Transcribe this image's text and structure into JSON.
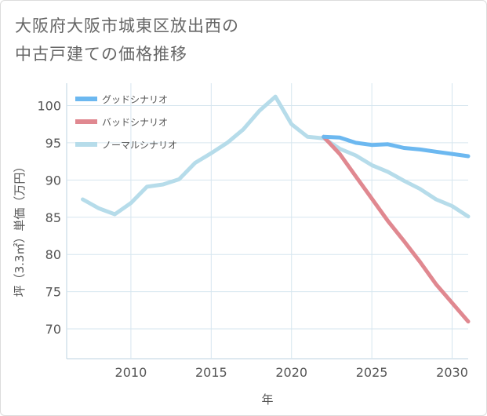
{
  "title_lines": [
    "大阪府大阪市城東区放出西の",
    "中古戸建ての価格推移"
  ],
  "chart_data": {
    "type": "line",
    "title": "大阪府大阪市城東区放出西の中古戸建ての価格推移",
    "xlabel": "年",
    "ylabel": "坪（3.3㎡）単価（万円）",
    "xlim": [
      2006,
      2031
    ],
    "ylim": [
      66,
      103
    ],
    "xticks": [
      2010,
      2015,
      2020,
      2025,
      2030
    ],
    "yticks": [
      70,
      75,
      80,
      85,
      90,
      95,
      100
    ],
    "grid": true,
    "legend_position": "top-left",
    "series": [
      {
        "name": "グッドシナリオ",
        "color": "#6cb8f0",
        "x": [
          2022,
          2023,
          2024,
          2025,
          2026,
          2027,
          2028,
          2029,
          2030,
          2031
        ],
        "y": [
          95.8,
          95.7,
          95.0,
          94.7,
          94.8,
          94.3,
          94.1,
          93.8,
          93.5,
          93.2
        ]
      },
      {
        "name": "バッドシナリオ",
        "color": "#e08890",
        "x": [
          2022,
          2023,
          2024,
          2025,
          2026,
          2027,
          2028,
          2029,
          2030,
          2031
        ],
        "y": [
          95.8,
          93.5,
          90.5,
          87.5,
          84.5,
          81.8,
          79.0,
          76.0,
          73.5,
          71.0
        ]
      },
      {
        "name": "ノーマルシナリオ",
        "color": "#b6dcea",
        "x": [
          2007,
          2008,
          2009,
          2010,
          2011,
          2012,
          2013,
          2014,
          2015,
          2016,
          2017,
          2018,
          2019,
          2020,
          2021,
          2022,
          2023,
          2024,
          2025,
          2026,
          2027,
          2028,
          2029,
          2030,
          2031
        ],
        "y": [
          87.4,
          86.2,
          85.4,
          86.9,
          89.1,
          89.4,
          90.1,
          92.3,
          93.6,
          95.0,
          96.8,
          99.3,
          101.2,
          97.5,
          95.8,
          95.6,
          94.2,
          93.3,
          92.0,
          91.1,
          89.9,
          88.8,
          87.4,
          86.5,
          85.1
        ]
      }
    ]
  }
}
